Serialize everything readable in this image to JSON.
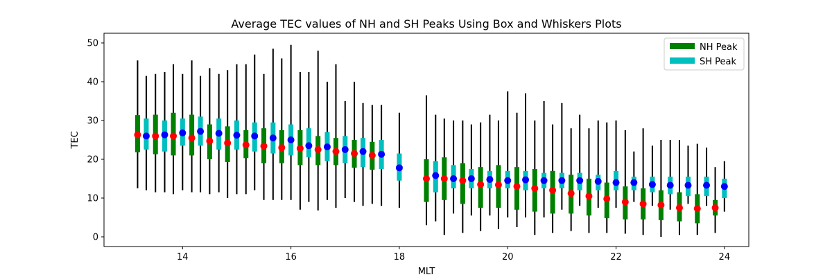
{
  "chart_data": {
    "type": "box",
    "title": "Average TEC values of NH and SH Peaks Using Box and Whiskers Plots",
    "xlabel": "MLT",
    "ylabel": "TEC",
    "xlim": [
      12.55,
      24.45
    ],
    "ylim": [
      -2.5,
      52.5
    ],
    "xticks": [
      14,
      16,
      18,
      20,
      22,
      24
    ],
    "yticks": [
      0,
      10,
      20,
      30,
      40,
      50
    ],
    "grid": false,
    "legend_position": "top-right",
    "colors": {
      "nh_box": "#008000",
      "sh_box": "#00bfbf",
      "nh_mean": "#ff0000",
      "sh_mean": "#0000ff",
      "whisker": "#000000"
    },
    "series": [
      {
        "name": "NH Peak",
        "color": "#008000",
        "boxes": [
          {
            "x": 13.17,
            "whislo": 12.5,
            "q1": 21.8,
            "mean": 26.3,
            "q3": 31.4,
            "whishi": 45.5
          },
          {
            "x": 13.5,
            "whislo": 11.5,
            "q1": 21.3,
            "mean": 26.0,
            "q3": 31.5,
            "whishi": 42.0
          },
          {
            "x": 13.83,
            "whislo": 11.0,
            "q1": 21.0,
            "mean": 26.0,
            "q3": 32.0,
            "whishi": 44.5
          },
          {
            "x": 14.17,
            "whislo": 11.5,
            "q1": 21.0,
            "mean": 25.5,
            "q3": 31.5,
            "whishi": 45.5
          },
          {
            "x": 14.5,
            "whislo": 11.0,
            "q1": 20.0,
            "mean": 24.7,
            "q3": 29.0,
            "whishi": 43.5
          },
          {
            "x": 14.83,
            "whislo": 10.0,
            "q1": 19.3,
            "mean": 24.2,
            "q3": 28.5,
            "whishi": 43.0
          },
          {
            "x": 15.17,
            "whislo": 11.0,
            "q1": 20.3,
            "mean": 23.7,
            "q3": 27.5,
            "whishi": 44.5
          },
          {
            "x": 15.5,
            "whislo": 9.5,
            "q1": 19.0,
            "mean": 23.4,
            "q3": 28.0,
            "whishi": 42.0
          },
          {
            "x": 15.83,
            "whislo": 9.5,
            "q1": 19.0,
            "mean": 23.0,
            "q3": 27.5,
            "whishi": 46.0
          },
          {
            "x": 16.17,
            "whislo": 7.0,
            "q1": 18.5,
            "mean": 22.8,
            "q3": 27.5,
            "whishi": 42.5
          },
          {
            "x": 16.5,
            "whislo": 6.8,
            "q1": 18.5,
            "mean": 22.5,
            "q3": 26.0,
            "whishi": 48.0
          },
          {
            "x": 16.83,
            "whislo": 7.5,
            "q1": 18.5,
            "mean": 22.0,
            "q3": 25.5,
            "whishi": 44.5
          },
          {
            "x": 17.17,
            "whislo": 9.0,
            "q1": 17.8,
            "mean": 21.5,
            "q3": 25.0,
            "whishi": 40.0
          },
          {
            "x": 17.5,
            "whislo": 8.5,
            "q1": 17.3,
            "mean": 21.0,
            "q3": 24.5,
            "whishi": 34.0
          },
          {
            "x": 18.5,
            "whislo": 3.0,
            "q1": 9.0,
            "mean": 15.0,
            "q3": 20.0,
            "whishi": 36.5
          },
          {
            "x": 18.83,
            "whislo": 0.5,
            "q1": 9.5,
            "mean": 15.0,
            "q3": 20.5,
            "whishi": 30.5
          },
          {
            "x": 19.17,
            "whislo": 1.0,
            "q1": 8.5,
            "mean": 14.5,
            "q3": 19.0,
            "whishi": 30.0
          },
          {
            "x": 19.5,
            "whislo": 1.5,
            "q1": 7.5,
            "mean": 13.5,
            "q3": 18.0,
            "whishi": 29.5
          },
          {
            "x": 19.83,
            "whislo": 2.0,
            "q1": 7.5,
            "mean": 13.4,
            "q3": 18.5,
            "whishi": 30.0
          },
          {
            "x": 20.17,
            "whislo": 2.5,
            "q1": 7.0,
            "mean": 13.0,
            "q3": 18.0,
            "whishi": 32.0
          },
          {
            "x": 20.5,
            "whislo": 0.5,
            "q1": 6.5,
            "mean": 12.5,
            "q3": 17.5,
            "whishi": 30.0
          },
          {
            "x": 20.83,
            "whislo": 1.0,
            "q1": 6.0,
            "mean": 12.0,
            "q3": 17.0,
            "whishi": 29.0
          },
          {
            "x": 21.17,
            "whislo": 1.5,
            "q1": 6.0,
            "mean": 11.2,
            "q3": 16.0,
            "whishi": 28.0
          },
          {
            "x": 21.5,
            "whislo": 1.0,
            "q1": 5.5,
            "mean": 10.5,
            "q3": 15.0,
            "whishi": 28.0
          },
          {
            "x": 21.83,
            "whislo": 1.0,
            "q1": 4.8,
            "mean": 9.8,
            "q3": 14.0,
            "whishi": 29.5
          },
          {
            "x": 22.17,
            "whislo": 0.8,
            "q1": 4.5,
            "mean": 9.0,
            "q3": 13.0,
            "whishi": 27.5
          },
          {
            "x": 22.5,
            "whislo": 0.5,
            "q1": 4.5,
            "mean": 8.5,
            "q3": 12.5,
            "whishi": 28.0
          },
          {
            "x": 22.83,
            "whislo": 0.0,
            "q1": 4.3,
            "mean": 8.2,
            "q3": 12.0,
            "whishi": 25.0
          },
          {
            "x": 23.17,
            "whislo": 0.5,
            "q1": 4.0,
            "mean": 7.5,
            "q3": 11.5,
            "whishi": 25.0
          },
          {
            "x": 23.5,
            "whislo": 0.5,
            "q1": 3.5,
            "mean": 7.3,
            "q3": 11.0,
            "whishi": 24.0
          },
          {
            "x": 23.83,
            "whislo": 1.0,
            "q1": 5.5,
            "mean": 7.5,
            "q3": 9.5,
            "whishi": 18.0
          }
        ]
      },
      {
        "name": "SH Peak",
        "color": "#00bfbf",
        "boxes": [
          {
            "x": 13.33,
            "whislo": 12.0,
            "q1": 22.5,
            "mean": 26.0,
            "q3": 30.5,
            "whishi": 41.5
          },
          {
            "x": 13.67,
            "whislo": 11.5,
            "q1": 22.0,
            "mean": 26.3,
            "q3": 30.0,
            "whishi": 42.5
          },
          {
            "x": 14.0,
            "whislo": 12.0,
            "q1": 23.5,
            "mean": 26.8,
            "q3": 30.5,
            "whishi": 42.0
          },
          {
            "x": 14.33,
            "whislo": 11.5,
            "q1": 23.5,
            "mean": 27.2,
            "q3": 31.0,
            "whishi": 41.5
          },
          {
            "x": 14.67,
            "whislo": 11.5,
            "q1": 22.5,
            "mean": 26.7,
            "q3": 30.5,
            "whishi": 42.0
          },
          {
            "x": 15.0,
            "whislo": 11.0,
            "q1": 22.5,
            "mean": 26.2,
            "q3": 30.0,
            "whishi": 44.5
          },
          {
            "x": 15.33,
            "whislo": 12.0,
            "q1": 22.0,
            "mean": 26.0,
            "q3": 29.5,
            "whishi": 47.0
          },
          {
            "x": 15.67,
            "whislo": 9.5,
            "q1": 21.5,
            "mean": 25.5,
            "q3": 29.5,
            "whishi": 48.5
          },
          {
            "x": 16.0,
            "whislo": 9.5,
            "q1": 21.0,
            "mean": 25.0,
            "q3": 29.0,
            "whishi": 49.5
          },
          {
            "x": 16.33,
            "whislo": 9.0,
            "q1": 20.5,
            "mean": 23.5,
            "q3": 28.0,
            "whishi": 42.5
          },
          {
            "x": 16.67,
            "whislo": 9.5,
            "q1": 19.5,
            "mean": 23.2,
            "q3": 27.0,
            "whishi": 40.0
          },
          {
            "x": 17.0,
            "whislo": 10.0,
            "q1": 19.0,
            "mean": 22.5,
            "q3": 26.0,
            "whishi": 35.0
          },
          {
            "x": 17.33,
            "whislo": 8.0,
            "q1": 18.0,
            "mean": 22.0,
            "q3": 25.5,
            "whishi": 34.5
          },
          {
            "x": 17.67,
            "whislo": 8.0,
            "q1": 17.5,
            "mean": 21.3,
            "q3": 25.0,
            "whishi": 34.0
          },
          {
            "x": 18.0,
            "whislo": 7.5,
            "q1": 14.5,
            "mean": 17.8,
            "q3": 21.5,
            "whishi": 32.0
          },
          {
            "x": 18.67,
            "whislo": 4.0,
            "q1": 11.5,
            "mean": 15.8,
            "q3": 19.5,
            "whishi": 31.5
          },
          {
            "x": 19.0,
            "whislo": 6.0,
            "q1": 12.5,
            "mean": 15.0,
            "q3": 18.5,
            "whishi": 30.0
          },
          {
            "x": 19.33,
            "whislo": 5.5,
            "q1": 12.5,
            "mean": 15.0,
            "q3": 17.5,
            "whishi": 29.0
          },
          {
            "x": 19.67,
            "whislo": 5.5,
            "q1": 12.5,
            "mean": 14.8,
            "q3": 17.0,
            "whishi": 31.5
          },
          {
            "x": 20.0,
            "whislo": 5.0,
            "q1": 12.5,
            "mean": 14.5,
            "q3": 17.0,
            "whishi": 37.5
          },
          {
            "x": 20.33,
            "whislo": 5.0,
            "q1": 12.0,
            "mean": 14.7,
            "q3": 17.0,
            "whishi": 37.0
          },
          {
            "x": 20.67,
            "whislo": 5.0,
            "q1": 12.5,
            "mean": 14.5,
            "q3": 16.5,
            "whishi": 35.0
          },
          {
            "x": 21.0,
            "whislo": 7.0,
            "q1": 12.5,
            "mean": 14.5,
            "q3": 16.5,
            "whishi": 34.5
          },
          {
            "x": 21.33,
            "whislo": 8.0,
            "q1": 12.0,
            "mean": 14.5,
            "q3": 16.5,
            "whishi": 31.5
          },
          {
            "x": 21.67,
            "whislo": 7.5,
            "q1": 12.0,
            "mean": 14.3,
            "q3": 16.0,
            "whishi": 30.0
          },
          {
            "x": 22.0,
            "whislo": 7.5,
            "q1": 12.0,
            "mean": 14.0,
            "q3": 17.0,
            "whishi": 30.0
          },
          {
            "x": 22.33,
            "whislo": 9.0,
            "q1": 12.0,
            "mean": 14.0,
            "q3": 15.5,
            "whishi": 22.0
          },
          {
            "x": 22.67,
            "whislo": 8.0,
            "q1": 11.5,
            "mean": 13.5,
            "q3": 15.5,
            "whishi": 23.5
          },
          {
            "x": 23.0,
            "whislo": 7.0,
            "q1": 11.0,
            "mean": 13.3,
            "q3": 15.5,
            "whishi": 25.0
          },
          {
            "x": 23.33,
            "whislo": 8.5,
            "q1": 10.5,
            "mean": 13.3,
            "q3": 15.5,
            "whishi": 23.5
          },
          {
            "x": 23.67,
            "whislo": 8.0,
            "q1": 10.5,
            "mean": 13.3,
            "q3": 15.5,
            "whishi": 23.0
          },
          {
            "x": 24.0,
            "whislo": 6.5,
            "q1": 10.0,
            "mean": 13.0,
            "q3": 15.0,
            "whishi": 19.5
          }
        ]
      }
    ]
  }
}
